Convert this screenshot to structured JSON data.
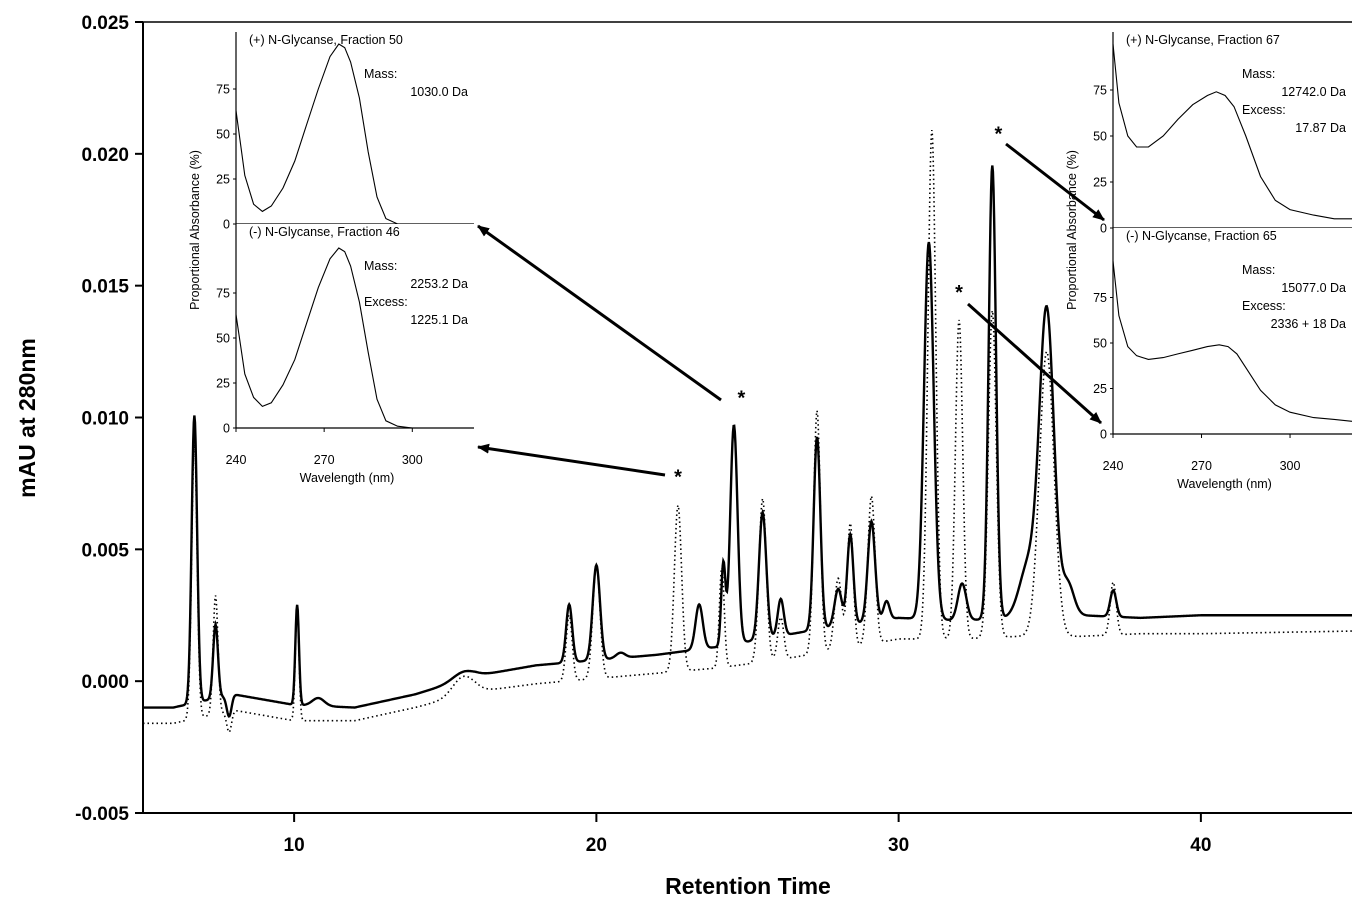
{
  "chart_data": {
    "type": "line",
    "title": "",
    "xlabel": "Retention Time",
    "ylabel": "mAU at 280nm",
    "xlim": [
      5,
      45
    ],
    "ylim": [
      -0.005,
      0.025
    ],
    "x_ticks": [
      10,
      20,
      30,
      40
    ],
    "x_tick_labels": [
      "10",
      "20",
      "30",
      "40"
    ],
    "y_ticks": [
      -0.005,
      0,
      0.005,
      0.01,
      0.015,
      0.02,
      0.025
    ],
    "y_tick_labels": [
      "-0.005",
      "0.000",
      "0.005",
      "0.010",
      "0.015",
      "0.020",
      "0.025"
    ],
    "grid": false,
    "legend": "none",
    "series": [
      {
        "style": "solid",
        "baseline": [
          [
            5,
            -0.001
          ],
          [
            6,
            -0.001
          ],
          [
            8,
            -0.0005
          ],
          [
            10,
            -0.0009
          ],
          [
            12,
            -0.001
          ],
          [
            14,
            -0.0005
          ],
          [
            16,
            0.0002
          ],
          [
            18,
            0.0006
          ],
          [
            20,
            0.0008
          ],
          [
            22,
            0.001
          ],
          [
            24,
            0.0013
          ],
          [
            26,
            0.0017
          ],
          [
            28,
            0.0021
          ],
          [
            30,
            0.0024
          ],
          [
            32,
            0.0023
          ],
          [
            34,
            0.0024
          ],
          [
            36,
            0.0025
          ],
          [
            38,
            0.0024
          ],
          [
            40,
            0.0025
          ],
          [
            45,
            0.0025
          ]
        ],
        "peaks": [
          [
            6.7,
            0.0109,
            0.09
          ],
          [
            7.4,
            0.0028,
            0.08
          ],
          [
            7.85,
            -0.0008,
            0.08
          ],
          [
            10.1,
            0.0038,
            0.06
          ],
          [
            10.8,
            0.0003,
            0.2
          ],
          [
            15.6,
            0.0003,
            0.35
          ],
          [
            19.1,
            0.0022,
            0.1
          ],
          [
            20.0,
            0.0036,
            0.12
          ],
          [
            20.8,
            0.0002,
            0.15
          ],
          [
            23.4,
            0.0017,
            0.12
          ],
          [
            24.2,
            0.0031,
            0.07
          ],
          [
            24.55,
            0.0083,
            0.12
          ],
          [
            25.5,
            0.0048,
            0.12
          ],
          [
            26.1,
            0.0014,
            0.1
          ],
          [
            27.3,
            0.0073,
            0.11
          ],
          [
            28.0,
            0.0014,
            0.12
          ],
          [
            28.4,
            0.0034,
            0.1
          ],
          [
            29.1,
            0.0038,
            0.12
          ],
          [
            29.6,
            0.0007,
            0.1
          ],
          [
            31.0,
            0.0143,
            0.16
          ],
          [
            32.1,
            0.0014,
            0.14
          ],
          [
            33.1,
            0.0172,
            0.12
          ],
          [
            34.3,
            0.002,
            0.3
          ],
          [
            34.9,
            0.0115,
            0.24
          ],
          [
            35.6,
            0.0012,
            0.2
          ],
          [
            37.1,
            0.001,
            0.1
          ]
        ]
      },
      {
        "style": "dotted",
        "baseline": [
          [
            5,
            -0.0016
          ],
          [
            6,
            -0.0016
          ],
          [
            8,
            -0.0011
          ],
          [
            10,
            -0.0015
          ],
          [
            12,
            -0.0015
          ],
          [
            14,
            -0.001
          ],
          [
            16,
            -0.0004
          ],
          [
            18,
            -0.0001
          ],
          [
            20,
            0.0001
          ],
          [
            22,
            0.0003
          ],
          [
            24,
            0.0005
          ],
          [
            26,
            0.0008
          ],
          [
            28,
            0.0012
          ],
          [
            30,
            0.0016
          ],
          [
            32,
            0.0016
          ],
          [
            34,
            0.0017
          ],
          [
            36,
            0.0017
          ],
          [
            38,
            0.0018
          ],
          [
            40,
            0.0018
          ],
          [
            45,
            0.0019
          ]
        ],
        "peaks": [
          [
            6.7,
            0.0105,
            0.09
          ],
          [
            7.4,
            0.0045,
            0.08
          ],
          [
            7.85,
            -0.0008,
            0.08
          ],
          [
            10.1,
            0.0043,
            0.06
          ],
          [
            15.6,
            0.0007,
            0.35
          ],
          [
            19.1,
            0.0025,
            0.1
          ],
          [
            20.0,
            0.0043,
            0.12
          ],
          [
            22.7,
            0.0063,
            0.12
          ],
          [
            24.15,
            0.0038,
            0.08
          ],
          [
            25.5,
            0.0062,
            0.12
          ],
          [
            26.1,
            0.0016,
            0.1
          ],
          [
            27.3,
            0.0092,
            0.11
          ],
          [
            28.0,
            0.0027,
            0.12
          ],
          [
            28.4,
            0.0047,
            0.1
          ],
          [
            29.1,
            0.0056,
            0.12
          ],
          [
            31.1,
            0.0193,
            0.13
          ],
          [
            32.0,
            0.0121,
            0.12
          ],
          [
            33.1,
            0.0124,
            0.13
          ],
          [
            34.9,
            0.0108,
            0.24
          ],
          [
            37.1,
            0.002,
            0.1
          ]
        ]
      }
    ],
    "peak_markers": [
      {
        "label": "*",
        "x": 24.8,
        "y": 0.0105
      },
      {
        "label": "*",
        "x": 22.7,
        "y": 0.0075
      },
      {
        "label": "*",
        "x": 33.3,
        "y": 0.0205
      },
      {
        "label": "*",
        "x": 32.0,
        "y": 0.0145
      }
    ]
  },
  "insets": [
    {
      "label": "(+) N-Glycanse, Fraction 50",
      "lines": [
        "Mass:",
        "1030.0 Da"
      ],
      "y_ticks": [
        "75",
        "50",
        "25",
        "0"
      ],
      "curve": [
        [
          240,
          63
        ],
        [
          243,
          27
        ],
        [
          246,
          11
        ],
        [
          249,
          7
        ],
        [
          252,
          10
        ],
        [
          256,
          20
        ],
        [
          260,
          35
        ],
        [
          264,
          55
        ],
        [
          268,
          75
        ],
        [
          272,
          93
        ],
        [
          275,
          100
        ],
        [
          277,
          98
        ],
        [
          279,
          90
        ],
        [
          282,
          70
        ],
        [
          285,
          40
        ],
        [
          288,
          15
        ],
        [
          291,
          3
        ],
        [
          295,
          0
        ],
        [
          300,
          0
        ],
        [
          310,
          0
        ],
        [
          321,
          0
        ]
      ]
    },
    {
      "label": "(-) N-Glycanse, Fraction 46",
      "lines": [
        "Mass:",
        "2253.2 Da",
        "Excess:",
        "1225.1 Da"
      ],
      "y_ticks": [
        "75",
        "50",
        "25",
        "0"
      ],
      "curve": [
        [
          240,
          63
        ],
        [
          243,
          30
        ],
        [
          246,
          17
        ],
        [
          249,
          12
        ],
        [
          252,
          14
        ],
        [
          256,
          24
        ],
        [
          260,
          38
        ],
        [
          264,
          58
        ],
        [
          268,
          78
        ],
        [
          272,
          94
        ],
        [
          275,
          100
        ],
        [
          277,
          98
        ],
        [
          279,
          90
        ],
        [
          282,
          70
        ],
        [
          285,
          42
        ],
        [
          288,
          16
        ],
        [
          291,
          4
        ],
        [
          295,
          1
        ],
        [
          300,
          0
        ],
        [
          310,
          0
        ],
        [
          321,
          0
        ]
      ]
    },
    {
      "label": "(+) N-Glycanse, Fraction 67",
      "lines": [
        "Mass:",
        "12742.0 Da",
        "Excess:",
        "17.87 Da"
      ],
      "y_ticks": [
        "75",
        "50",
        "25",
        "0"
      ],
      "curve": [
        [
          240,
          100
        ],
        [
          242,
          68
        ],
        [
          245,
          50
        ],
        [
          248,
          44
        ],
        [
          252,
          44
        ],
        [
          257,
          50
        ],
        [
          262,
          59
        ],
        [
          267,
          67
        ],
        [
          272,
          72
        ],
        [
          275,
          74
        ],
        [
          278,
          72
        ],
        [
          281,
          66
        ],
        [
          285,
          50
        ],
        [
          290,
          28
        ],
        [
          295,
          15
        ],
        [
          300,
          10
        ],
        [
          308,
          7
        ],
        [
          315,
          5
        ],
        [
          321,
          5
        ]
      ]
    },
    {
      "label": "(-) N-Glycanse, Fraction 65",
      "lines": [
        "Mass:",
        "15077.0 Da",
        "Excess:",
        "2336 + 18 Da"
      ],
      "y_ticks": [
        "75",
        "50",
        "25",
        "0"
      ],
      "curve": [
        [
          240,
          95
        ],
        [
          242,
          65
        ],
        [
          245,
          48
        ],
        [
          248,
          43
        ],
        [
          252,
          41
        ],
        [
          257,
          42
        ],
        [
          262,
          44
        ],
        [
          267,
          46
        ],
        [
          272,
          48
        ],
        [
          276,
          49
        ],
        [
          279,
          48
        ],
        [
          282,
          44
        ],
        [
          286,
          34
        ],
        [
          290,
          24
        ],
        [
          295,
          16
        ],
        [
          300,
          12
        ],
        [
          308,
          9
        ],
        [
          315,
          8
        ],
        [
          321,
          7
        ]
      ]
    }
  ],
  "inset_axes": {
    "ylabel": "Proportional Absorbance (%)",
    "xlabel": "Wavelength (nm)",
    "x_tick_labels": [
      "240",
      "270",
      "300"
    ]
  }
}
